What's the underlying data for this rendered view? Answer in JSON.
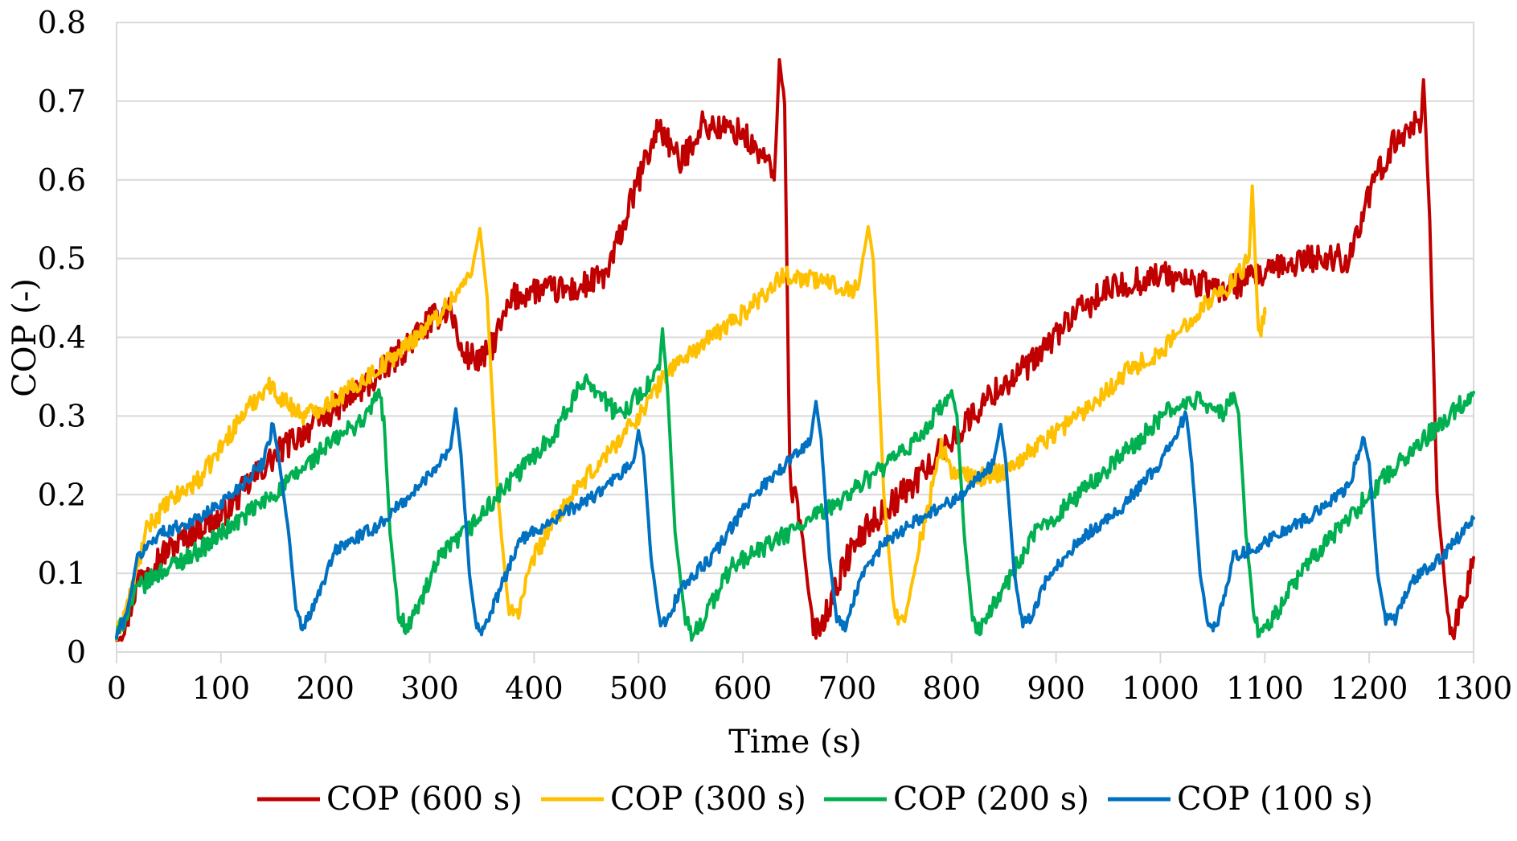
{
  "chart_data": {
    "type": "line",
    "title": "",
    "xlabel": "Time (s)",
    "ylabel": "COP (-)",
    "xlim": [
      0,
      1300
    ],
    "ylim": [
      0,
      0.8
    ],
    "xticks": [
      0,
      100,
      200,
      300,
      400,
      500,
      600,
      700,
      800,
      900,
      1000,
      1100,
      1200,
      1300
    ],
    "xtick_labels": [
      "0",
      "100",
      "200",
      "300",
      "400",
      "500",
      "600",
      "700",
      "800",
      "900",
      "1000",
      "1100",
      "1200",
      "1300"
    ],
    "yticks": [
      0,
      0.1,
      0.2,
      0.3,
      0.4,
      0.5,
      0.6,
      0.7,
      0.8
    ],
    "ytick_labels": [
      "0",
      "0.1",
      "0.2",
      "0.3",
      "0.4",
      "0.5",
      "0.6",
      "0.7",
      "0.8"
    ],
    "grid": "horizontal",
    "legend_position": "bottom",
    "series": [
      {
        "name": "COP (600 s)",
        "color": "#c00000",
        "noise": 0.018,
        "points": [
          [
            0,
            0.02
          ],
          [
            10,
            0.04
          ],
          [
            20,
            0.09
          ],
          [
            30,
            0.11
          ],
          [
            50,
            0.13
          ],
          [
            80,
            0.16
          ],
          [
            100,
            0.17
          ],
          [
            130,
            0.22
          ],
          [
            160,
            0.26
          ],
          [
            200,
            0.3
          ],
          [
            250,
            0.35
          ],
          [
            300,
            0.42
          ],
          [
            320,
            0.44
          ],
          [
            330,
            0.38
          ],
          [
            350,
            0.37
          ],
          [
            360,
            0.39
          ],
          [
            380,
            0.45
          ],
          [
            400,
            0.46
          ],
          [
            440,
            0.46
          ],
          [
            470,
            0.48
          ],
          [
            490,
            0.56
          ],
          [
            500,
            0.6
          ],
          [
            520,
            0.67
          ],
          [
            540,
            0.62
          ],
          [
            560,
            0.67
          ],
          [
            600,
            0.66
          ],
          [
            610,
            0.64
          ],
          [
            620,
            0.63
          ],
          [
            630,
            0.6
          ],
          [
            635,
            0.75
          ],
          [
            640,
            0.7
          ],
          [
            645,
            0.22
          ],
          [
            655,
            0.17
          ],
          [
            665,
            0.05
          ],
          [
            670,
            0.03
          ],
          [
            680,
            0.05
          ],
          [
            700,
            0.12
          ],
          [
            720,
            0.16
          ],
          [
            760,
            0.21
          ],
          [
            800,
            0.27
          ],
          [
            840,
            0.33
          ],
          [
            880,
            0.37
          ],
          [
            910,
            0.42
          ],
          [
            950,
            0.46
          ],
          [
            1000,
            0.48
          ],
          [
            1030,
            0.47
          ],
          [
            1060,
            0.46
          ],
          [
            1100,
            0.48
          ],
          [
            1140,
            0.5
          ],
          [
            1180,
            0.5
          ],
          [
            1200,
            0.58
          ],
          [
            1220,
            0.64
          ],
          [
            1240,
            0.67
          ],
          [
            1250,
            0.68
          ],
          [
            1252,
            0.73
          ],
          [
            1258,
            0.55
          ],
          [
            1265,
            0.2
          ],
          [
            1275,
            0.05
          ],
          [
            1280,
            0.03
          ],
          [
            1290,
            0.06
          ],
          [
            1300,
            0.12
          ]
        ]
      },
      {
        "name": "COP (300 s)",
        "color": "#ffc000",
        "noise": 0.012,
        "points": [
          [
            0,
            0.02
          ],
          [
            15,
            0.08
          ],
          [
            30,
            0.16
          ],
          [
            50,
            0.19
          ],
          [
            80,
            0.22
          ],
          [
            120,
            0.3
          ],
          [
            145,
            0.34
          ],
          [
            160,
            0.32
          ],
          [
            180,
            0.3
          ],
          [
            220,
            0.33
          ],
          [
            270,
            0.38
          ],
          [
            310,
            0.43
          ],
          [
            340,
            0.48
          ],
          [
            348,
            0.54
          ],
          [
            355,
            0.45
          ],
          [
            365,
            0.2
          ],
          [
            375,
            0.06
          ],
          [
            385,
            0.05
          ],
          [
            400,
            0.12
          ],
          [
            420,
            0.17
          ],
          [
            450,
            0.22
          ],
          [
            500,
            0.3
          ],
          [
            530,
            0.36
          ],
          [
            560,
            0.39
          ],
          [
            600,
            0.43
          ],
          [
            640,
            0.48
          ],
          [
            680,
            0.47
          ],
          [
            710,
            0.46
          ],
          [
            720,
            0.54
          ],
          [
            725,
            0.5
          ],
          [
            735,
            0.2
          ],
          [
            745,
            0.05
          ],
          [
            755,
            0.04
          ],
          [
            770,
            0.14
          ],
          [
            790,
            0.26
          ],
          [
            800,
            0.23
          ],
          [
            820,
            0.22
          ],
          [
            850,
            0.23
          ],
          [
            890,
            0.27
          ],
          [
            930,
            0.31
          ],
          [
            970,
            0.36
          ],
          [
            1000,
            0.38
          ],
          [
            1040,
            0.44
          ],
          [
            1070,
            0.47
          ],
          [
            1085,
            0.5
          ],
          [
            1088,
            0.59
          ],
          [
            1094,
            0.4
          ],
          [
            1100,
            0.43
          ],
          [
            1100,
            0.43
          ]
        ]
      },
      {
        "name": "COP (200 s)",
        "color": "#00b050",
        "noise": 0.012,
        "points": [
          [
            0,
            0.02
          ],
          [
            10,
            0.05
          ],
          [
            20,
            0.08
          ],
          [
            40,
            0.1
          ],
          [
            80,
            0.13
          ],
          [
            120,
            0.17
          ],
          [
            160,
            0.21
          ],
          [
            200,
            0.26
          ],
          [
            240,
            0.3
          ],
          [
            250,
            0.33
          ],
          [
            256,
            0.3
          ],
          [
            262,
            0.15
          ],
          [
            270,
            0.05
          ],
          [
            278,
            0.03
          ],
          [
            290,
            0.06
          ],
          [
            310,
            0.12
          ],
          [
            340,
            0.16
          ],
          [
            380,
            0.22
          ],
          [
            420,
            0.28
          ],
          [
            450,
            0.35
          ],
          [
            480,
            0.3
          ],
          [
            510,
            0.34
          ],
          [
            520,
            0.36
          ],
          [
            523,
            0.41
          ],
          [
            528,
            0.33
          ],
          [
            535,
            0.15
          ],
          [
            545,
            0.04
          ],
          [
            552,
            0.02
          ],
          [
            565,
            0.05
          ],
          [
            590,
            0.11
          ],
          [
            630,
            0.14
          ],
          [
            680,
            0.18
          ],
          [
            720,
            0.22
          ],
          [
            760,
            0.26
          ],
          [
            790,
            0.31
          ],
          [
            800,
            0.33
          ],
          [
            805,
            0.3
          ],
          [
            812,
            0.15
          ],
          [
            820,
            0.04
          ],
          [
            828,
            0.03
          ],
          [
            845,
            0.07
          ],
          [
            880,
            0.15
          ],
          [
            930,
            0.21
          ],
          [
            980,
            0.27
          ],
          [
            1010,
            0.31
          ],
          [
            1040,
            0.32
          ],
          [
            1060,
            0.3
          ],
          [
            1070,
            0.33
          ],
          [
            1075,
            0.3
          ],
          [
            1082,
            0.15
          ],
          [
            1090,
            0.04
          ],
          [
            1098,
            0.02
          ],
          [
            1115,
            0.06
          ],
          [
            1140,
            0.11
          ],
          [
            1180,
            0.17
          ],
          [
            1220,
            0.23
          ],
          [
            1260,
            0.28
          ],
          [
            1300,
            0.33
          ]
        ]
      },
      {
        "name": "COP (100 s)",
        "color": "#0070c0",
        "noise": 0.008,
        "points": [
          [
            0,
            0.02
          ],
          [
            10,
            0.05
          ],
          [
            20,
            0.12
          ],
          [
            40,
            0.15
          ],
          [
            80,
            0.17
          ],
          [
            110,
            0.2
          ],
          [
            140,
            0.24
          ],
          [
            150,
            0.29
          ],
          [
            155,
            0.25
          ],
          [
            165,
            0.15
          ],
          [
            172,
            0.05
          ],
          [
            178,
            0.03
          ],
          [
            190,
            0.06
          ],
          [
            210,
            0.13
          ],
          [
            250,
            0.16
          ],
          [
            290,
            0.21
          ],
          [
            320,
            0.26
          ],
          [
            325,
            0.31
          ],
          [
            330,
            0.25
          ],
          [
            338,
            0.1
          ],
          [
            345,
            0.03
          ],
          [
            352,
            0.03
          ],
          [
            365,
            0.07
          ],
          [
            385,
            0.14
          ],
          [
            420,
            0.17
          ],
          [
            460,
            0.2
          ],
          [
            495,
            0.24
          ],
          [
            500,
            0.28
          ],
          [
            505,
            0.25
          ],
          [
            512,
            0.12
          ],
          [
            520,
            0.04
          ],
          [
            528,
            0.04
          ],
          [
            540,
            0.08
          ],
          [
            570,
            0.12
          ],
          [
            610,
            0.2
          ],
          [
            650,
            0.25
          ],
          [
            665,
            0.27
          ],
          [
            670,
            0.32
          ],
          [
            675,
            0.27
          ],
          [
            683,
            0.12
          ],
          [
            690,
            0.04
          ],
          [
            698,
            0.03
          ],
          [
            712,
            0.09
          ],
          [
            735,
            0.14
          ],
          [
            770,
            0.17
          ],
          [
            810,
            0.2
          ],
          [
            840,
            0.24
          ],
          [
            847,
            0.29
          ],
          [
            852,
            0.24
          ],
          [
            860,
            0.1
          ],
          [
            867,
            0.04
          ],
          [
            875,
            0.04
          ],
          [
            890,
            0.09
          ],
          [
            920,
            0.14
          ],
          [
            960,
            0.18
          ],
          [
            1000,
            0.24
          ],
          [
            1020,
            0.29
          ],
          [
            1025,
            0.3
          ],
          [
            1030,
            0.24
          ],
          [
            1038,
            0.1
          ],
          [
            1046,
            0.03
          ],
          [
            1055,
            0.04
          ],
          [
            1070,
            0.12
          ],
          [
            1100,
            0.14
          ],
          [
            1140,
            0.17
          ],
          [
            1180,
            0.21
          ],
          [
            1195,
            0.27
          ],
          [
            1200,
            0.24
          ],
          [
            1208,
            0.1
          ],
          [
            1216,
            0.04
          ],
          [
            1225,
            0.04
          ],
          [
            1240,
            0.09
          ],
          [
            1270,
            0.12
          ],
          [
            1300,
            0.17
          ]
        ]
      }
    ]
  }
}
